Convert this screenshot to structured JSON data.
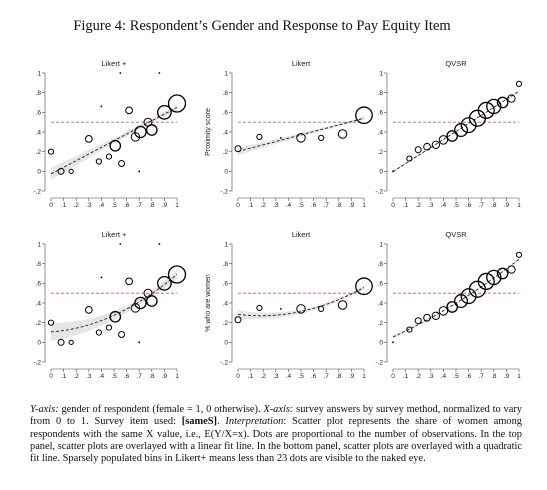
{
  "figure_title": "Figure 4:  Respondent’s Gender and Response to Pay Equity Item",
  "caption": {
    "y_axis_label": "Y-axis:",
    "y_axis_text": " gender of respondent (female = 1, 0 otherwise). ",
    "x_axis_label": "X-axis:",
    "x_axis_text": " survey answers by survey method, normalized to vary from 0 to 1. Survey item used: ",
    "item_name": "[sameS]",
    "sep": ". ",
    "interp_label": "Interpretation",
    "interp_text": ": Scatter plot represents the share of women among respondents with the same X value, i.e., E(Y/X=x). Dots are proportional to the number of observations. In the top panel, scatter plots are overlayed with a linear fit line. In the bottom panel, scatter plots are overlayed with a quadratic fit line.  Sparsely populated bins in Likert+ means less than 23 dots are visible to the naked eye."
  },
  "colors": {
    "reference_line": "#d9534f",
    "band": "#e6e6e6",
    "marker": "#000000"
  },
  "chart_data": [
    {
      "type": "scatter",
      "title": "Likert +",
      "ylabel": "",
      "fit": "linear",
      "xlim": [
        0,
        1
      ],
      "ylim": [
        -0.2,
        1
      ],
      "reference_y": 0.5,
      "x_ticks": [
        "0",
        ".1",
        ".2",
        ".3",
        ".4",
        ".5",
        ".6",
        ".7",
        ".8",
        ".9",
        "1"
      ],
      "y_ticks": [
        "-.2",
        "0",
        ".2",
        ".4",
        ".6",
        ".8",
        "1"
      ],
      "points": [
        {
          "x": 0.0,
          "y": 0.2,
          "n": 3
        },
        {
          "x": 0.08,
          "y": 0.0,
          "n": 4
        },
        {
          "x": 0.16,
          "y": 0.0,
          "n": 2
        },
        {
          "x": 0.3,
          "y": 0.33,
          "n": 5
        },
        {
          "x": 0.38,
          "y": 0.1,
          "n": 3
        },
        {
          "x": 0.4,
          "y": 0.66,
          "n": 1
        },
        {
          "x": 0.46,
          "y": 0.15,
          "n": 3
        },
        {
          "x": 0.51,
          "y": 0.26,
          "n": 12
        },
        {
          "x": 0.55,
          "y": 1.0,
          "n": 1
        },
        {
          "x": 0.56,
          "y": 0.08,
          "n": 4
        },
        {
          "x": 0.62,
          "y": 0.62,
          "n": 5
        },
        {
          "x": 0.67,
          "y": 0.35,
          "n": 8
        },
        {
          "x": 0.7,
          "y": 0.0,
          "n": 1
        },
        {
          "x": 0.71,
          "y": 0.4,
          "n": 14
        },
        {
          "x": 0.77,
          "y": 0.5,
          "n": 7
        },
        {
          "x": 0.8,
          "y": 0.42,
          "n": 12
        },
        {
          "x": 0.86,
          "y": 1.0,
          "n": 1
        },
        {
          "x": 0.9,
          "y": 0.6,
          "n": 20
        },
        {
          "x": 1.0,
          "y": 0.69,
          "n": 32
        }
      ]
    },
    {
      "type": "scatter",
      "title": "Likert",
      "ylabel": "Proximity score",
      "fit": "linear",
      "xlim": [
        0,
        1
      ],
      "ylim": [
        -0.2,
        1
      ],
      "reference_y": 0.5,
      "x_ticks": [
        "0",
        ".1",
        ".2",
        ".3",
        ".4",
        ".5",
        ".6",
        ".7",
        ".8",
        ".9",
        "1"
      ],
      "y_ticks": [
        "-.2",
        "0",
        ".2",
        ".4",
        ".6",
        ".8",
        "1"
      ],
      "points": [
        {
          "x": 0.0,
          "y": 0.23,
          "n": 4
        },
        {
          "x": 0.17,
          "y": 0.35,
          "n": 3
        },
        {
          "x": 0.34,
          "y": 0.34,
          "n": 1
        },
        {
          "x": 0.5,
          "y": 0.34,
          "n": 8
        },
        {
          "x": 0.66,
          "y": 0.34,
          "n": 3
        },
        {
          "x": 0.83,
          "y": 0.38,
          "n": 8
        },
        {
          "x": 1.0,
          "y": 0.57,
          "n": 30
        }
      ]
    },
    {
      "type": "scatter",
      "title": "QVSR",
      "ylabel": "",
      "fit": "linear",
      "xlim": [
        0,
        1
      ],
      "ylim": [
        -0.2,
        1
      ],
      "reference_y": 0.5,
      "x_ticks": [
        "0",
        ".1",
        ".2",
        ".3",
        ".4",
        ".5",
        ".6",
        ".7",
        ".8",
        ".9",
        "1"
      ],
      "y_ticks": [
        "-.2",
        "0",
        ".2",
        ".4",
        ".6",
        ".8",
        "1"
      ],
      "points": [
        {
          "x": 0.0,
          "y": 0.0,
          "n": 1
        },
        {
          "x": 0.13,
          "y": 0.13,
          "n": 3
        },
        {
          "x": 0.2,
          "y": 0.22,
          "n": 4
        },
        {
          "x": 0.27,
          "y": 0.25,
          "n": 5
        },
        {
          "x": 0.34,
          "y": 0.27,
          "n": 6
        },
        {
          "x": 0.4,
          "y": 0.32,
          "n": 8
        },
        {
          "x": 0.47,
          "y": 0.36,
          "n": 12
        },
        {
          "x": 0.54,
          "y": 0.42,
          "n": 18
        },
        {
          "x": 0.6,
          "y": 0.47,
          "n": 24
        },
        {
          "x": 0.67,
          "y": 0.54,
          "n": 28
        },
        {
          "x": 0.74,
          "y": 0.62,
          "n": 28
        },
        {
          "x": 0.8,
          "y": 0.66,
          "n": 22
        },
        {
          "x": 0.87,
          "y": 0.7,
          "n": 12
        },
        {
          "x": 0.94,
          "y": 0.74,
          "n": 6
        },
        {
          "x": 1.0,
          "y": 0.89,
          "n": 3
        }
      ]
    },
    {
      "type": "scatter",
      "title": "Likert +",
      "ylabel": "",
      "fit": "quadratic",
      "xlim": [
        0,
        1
      ],
      "ylim": [
        -0.2,
        1
      ],
      "reference_y": 0.5,
      "x_ticks": [
        "0",
        ".1",
        ".2",
        ".3",
        ".4",
        ".5",
        ".6",
        ".7",
        ".8",
        ".9",
        "1"
      ],
      "y_ticks": [
        "-.2",
        "0",
        ".2",
        ".4",
        ".6",
        ".8",
        "1"
      ],
      "points": [
        {
          "x": 0.0,
          "y": 0.2,
          "n": 3
        },
        {
          "x": 0.08,
          "y": 0.0,
          "n": 4
        },
        {
          "x": 0.16,
          "y": 0.0,
          "n": 2
        },
        {
          "x": 0.3,
          "y": 0.33,
          "n": 5
        },
        {
          "x": 0.38,
          "y": 0.1,
          "n": 3
        },
        {
          "x": 0.4,
          "y": 0.66,
          "n": 1
        },
        {
          "x": 0.46,
          "y": 0.15,
          "n": 3
        },
        {
          "x": 0.51,
          "y": 0.26,
          "n": 12
        },
        {
          "x": 0.55,
          "y": 1.0,
          "n": 1
        },
        {
          "x": 0.56,
          "y": 0.08,
          "n": 4
        },
        {
          "x": 0.62,
          "y": 0.62,
          "n": 5
        },
        {
          "x": 0.67,
          "y": 0.35,
          "n": 8
        },
        {
          "x": 0.7,
          "y": 0.0,
          "n": 1
        },
        {
          "x": 0.71,
          "y": 0.4,
          "n": 14
        },
        {
          "x": 0.77,
          "y": 0.5,
          "n": 7
        },
        {
          "x": 0.8,
          "y": 0.42,
          "n": 12
        },
        {
          "x": 0.86,
          "y": 1.0,
          "n": 1
        },
        {
          "x": 0.9,
          "y": 0.6,
          "n": 20
        },
        {
          "x": 1.0,
          "y": 0.69,
          "n": 32
        }
      ]
    },
    {
      "type": "scatter",
      "title": "Likert",
      "ylabel": "% who are women",
      "fit": "quadratic",
      "xlim": [
        0,
        1
      ],
      "ylim": [
        -0.2,
        1
      ],
      "reference_y": 0.5,
      "x_ticks": [
        "0",
        ".1",
        ".2",
        ".3",
        ".4",
        ".5",
        ".6",
        ".7",
        ".8",
        ".9",
        "1"
      ],
      "y_ticks": [
        "-.2",
        "0",
        ".2",
        ".4",
        ".6",
        ".8",
        "1"
      ],
      "points": [
        {
          "x": 0.0,
          "y": 0.23,
          "n": 4
        },
        {
          "x": 0.17,
          "y": 0.35,
          "n": 3
        },
        {
          "x": 0.34,
          "y": 0.34,
          "n": 1
        },
        {
          "x": 0.5,
          "y": 0.34,
          "n": 8
        },
        {
          "x": 0.66,
          "y": 0.34,
          "n": 3
        },
        {
          "x": 0.83,
          "y": 0.38,
          "n": 8
        },
        {
          "x": 1.0,
          "y": 0.57,
          "n": 30
        }
      ]
    },
    {
      "type": "scatter",
      "title": "QVSR",
      "ylabel": "",
      "fit": "quadratic",
      "xlim": [
        0,
        1
      ],
      "ylim": [
        -0.2,
        1
      ],
      "reference_y": 0.5,
      "x_ticks": [
        "0",
        ".1",
        ".2",
        ".3",
        ".4",
        ".5",
        ".6",
        ".7",
        ".8",
        ".9",
        "1"
      ],
      "y_ticks": [
        "-.2",
        "0",
        ".2",
        ".4",
        ".6",
        ".8",
        "1"
      ],
      "points": [
        {
          "x": 0.0,
          "y": 0.0,
          "n": 1
        },
        {
          "x": 0.13,
          "y": 0.13,
          "n": 3
        },
        {
          "x": 0.2,
          "y": 0.22,
          "n": 4
        },
        {
          "x": 0.27,
          "y": 0.25,
          "n": 5
        },
        {
          "x": 0.34,
          "y": 0.27,
          "n": 6
        },
        {
          "x": 0.4,
          "y": 0.32,
          "n": 8
        },
        {
          "x": 0.47,
          "y": 0.36,
          "n": 12
        },
        {
          "x": 0.54,
          "y": 0.42,
          "n": 18
        },
        {
          "x": 0.6,
          "y": 0.47,
          "n": 24
        },
        {
          "x": 0.67,
          "y": 0.54,
          "n": 28
        },
        {
          "x": 0.74,
          "y": 0.62,
          "n": 28
        },
        {
          "x": 0.8,
          "y": 0.66,
          "n": 22
        },
        {
          "x": 0.87,
          "y": 0.7,
          "n": 12
        },
        {
          "x": 0.94,
          "y": 0.74,
          "n": 6
        },
        {
          "x": 1.0,
          "y": 0.89,
          "n": 3
        }
      ]
    }
  ]
}
